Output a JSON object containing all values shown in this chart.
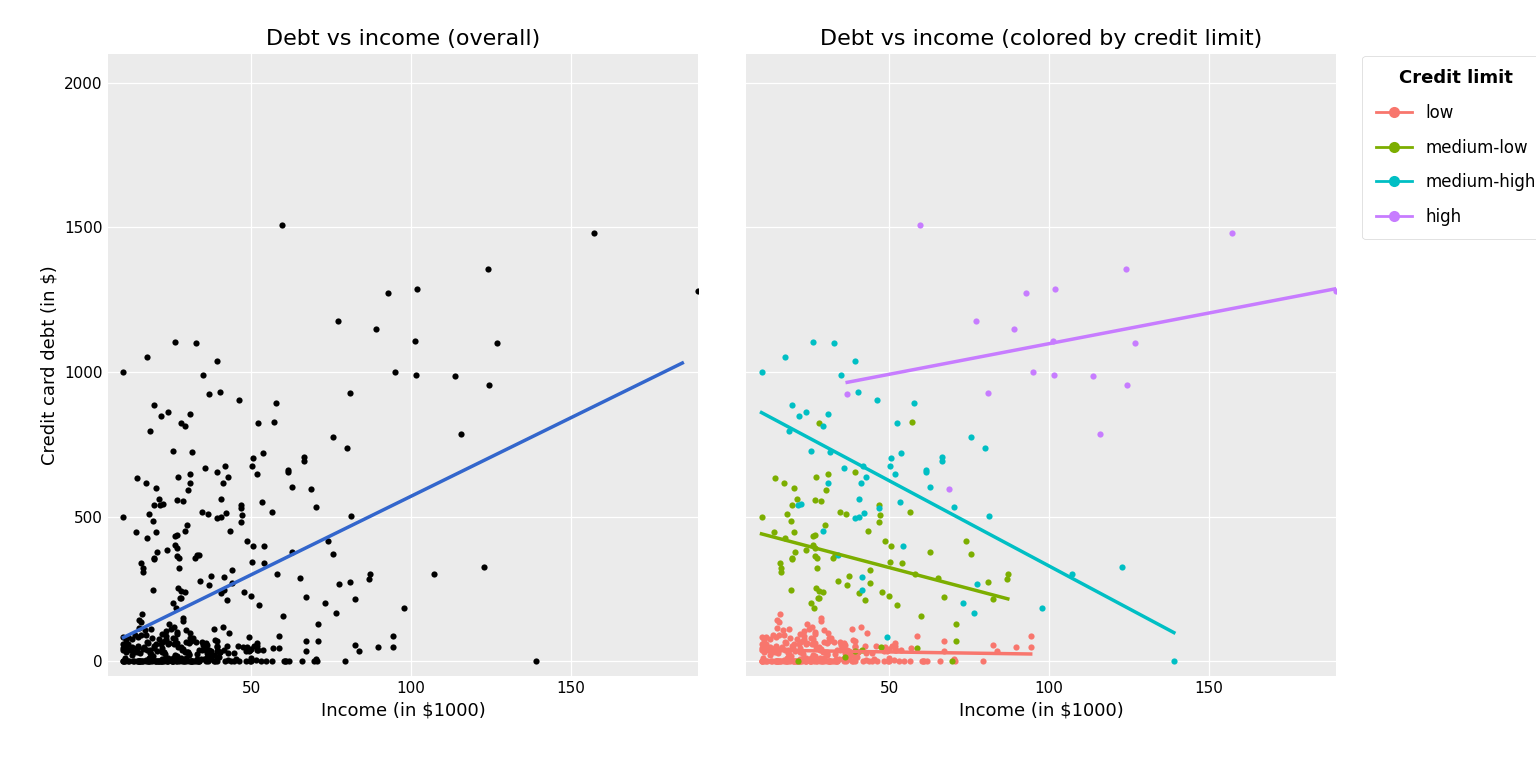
{
  "title_left": "Debt vs income (overall)",
  "title_right": "Debt vs income (colored by credit limit)",
  "xlabel": "Income (in $1000)",
  "ylabel": "Credit card debt (in $)",
  "legend_title": "Credit limit",
  "legend_labels": [
    "low",
    "medium-low",
    "medium-high",
    "high"
  ],
  "colors": {
    "low": "#F8766D",
    "medium-low": "#7CAE00",
    "medium-high": "#00BFC4",
    "high": "#C77CFF"
  },
  "overall_line_color": "#3366CC",
  "bg_color": "#EBEBEB",
  "grid_color": "#FFFFFF",
  "ylim": [
    -50,
    2100
  ],
  "xlim": [
    5,
    190
  ],
  "yticks": [
    0,
    500,
    1000,
    1500,
    2000
  ],
  "xticks": [
    50,
    100,
    150
  ],
  "point_size": 20
}
